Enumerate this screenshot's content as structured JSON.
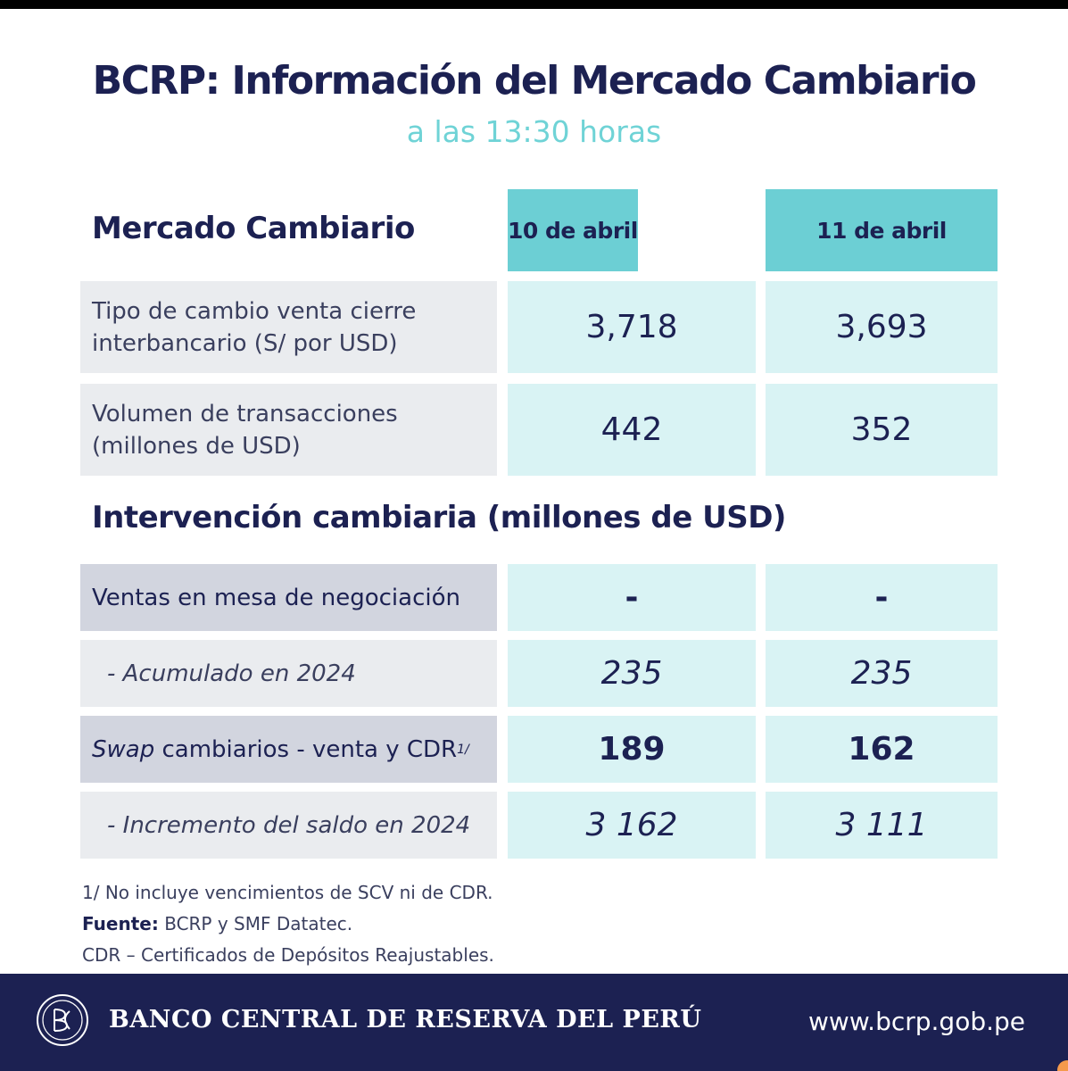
{
  "header": {
    "title": "BCRP: Información del Mercado Cambiario",
    "subtitle": "a las 13:30 horas"
  },
  "market": {
    "heading": "Mercado Cambiario",
    "columns": [
      "10 de abril",
      "11 de abril"
    ],
    "rows": [
      {
        "label_line1": "Tipo de cambio venta cierre",
        "label_line2": "interbancario (S/ por USD)",
        "values": [
          "3,718",
          "3,693"
        ]
      },
      {
        "label_line1": "Volumen de transacciones",
        "label_line2": "(millones de USD)",
        "values": [
          "442",
          "352"
        ]
      }
    ]
  },
  "intervention": {
    "heading": "Intervención cambiaria (millones de USD)",
    "rows": [
      {
        "label": "Ventas en mesa de negociación",
        "values": [
          "-",
          "-"
        ]
      },
      {
        "label": "- Acumulado en 2024",
        "values": [
          "235",
          "235"
        ]
      },
      {
        "label_italic": "Swap",
        "label_rest": "cambiarios - venta y CDR",
        "label_sup": "1/",
        "values": [
          "189",
          "162"
        ]
      },
      {
        "label": "- Incremento del saldo en 2024",
        "values": [
          "3 162",
          "3 111"
        ]
      }
    ]
  },
  "footnotes": {
    "note1": "1/ No incluye vencimientos de SCV ni de CDR.",
    "source_label": "Fuente:",
    "source_text": "BCRP y SMF Datatec.",
    "note3": "CDR – Certificados de Depósitos Reajustables."
  },
  "footer": {
    "bank_name": "BANCO CENTRAL DE RESERVA DEL PERÚ",
    "website": "www.bcrp.gob.pe",
    "logo_icon": "bcrp-logo-icon"
  },
  "colors": {
    "navy": "#1c2152",
    "teal": "#6ccfd4",
    "light_teal": "#d9f3f4",
    "label_bg": "#eaecef",
    "label_dark_bg": "#d2d5df"
  }
}
